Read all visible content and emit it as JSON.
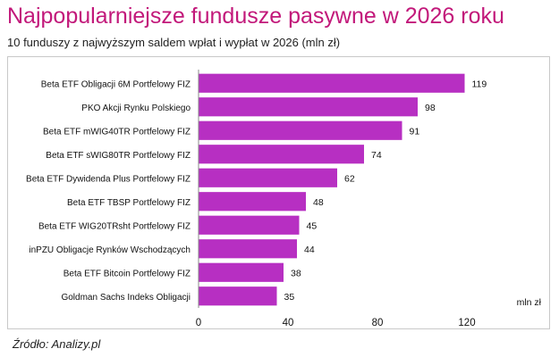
{
  "title": "Najpopularniejsze fundusze pasywne w 2026 roku",
  "subtitle": "10 funduszy z najwyższym saldem wpłat i wypłat w 2026 (mln zł)",
  "source": "Źródło: Analizy.pl",
  "colors": {
    "bar": "#b72fc2",
    "title": "#c2187a"
  },
  "chart_data": {
    "type": "bar",
    "orientation": "horizontal",
    "categories": [
      "Beta ETF Obligacji 6M Portfelowy FIZ",
      "PKO Akcji Rynku Polskiego",
      "Beta ETF mWIG40TR Portfelowy FIZ",
      "Beta ETF sWIG80TR Portfelowy FIZ",
      "Beta ETF Dywidenda Plus Portfelowy FIZ",
      "Beta ETF TBSP Portfelowy FIZ",
      "Beta ETF WIG20TRsht Portfelowy FIZ",
      "inPZU Obligacje Rynków Wschodzących",
      "Beta ETF Bitcoin Portfelowy FIZ",
      "Goldman Sachs Indeks Obligacji"
    ],
    "values": [
      119,
      98,
      91,
      74,
      62,
      48,
      45,
      44,
      38,
      35
    ],
    "data_labels": [
      "119",
      "98",
      "91",
      "74",
      "62",
      "48",
      "45",
      "44",
      "38",
      "35"
    ],
    "xlabel": "mln zł",
    "xlim": [
      0,
      140
    ],
    "xticks": [
      0,
      40,
      80,
      120
    ],
    "grid": false,
    "legend": "none"
  }
}
